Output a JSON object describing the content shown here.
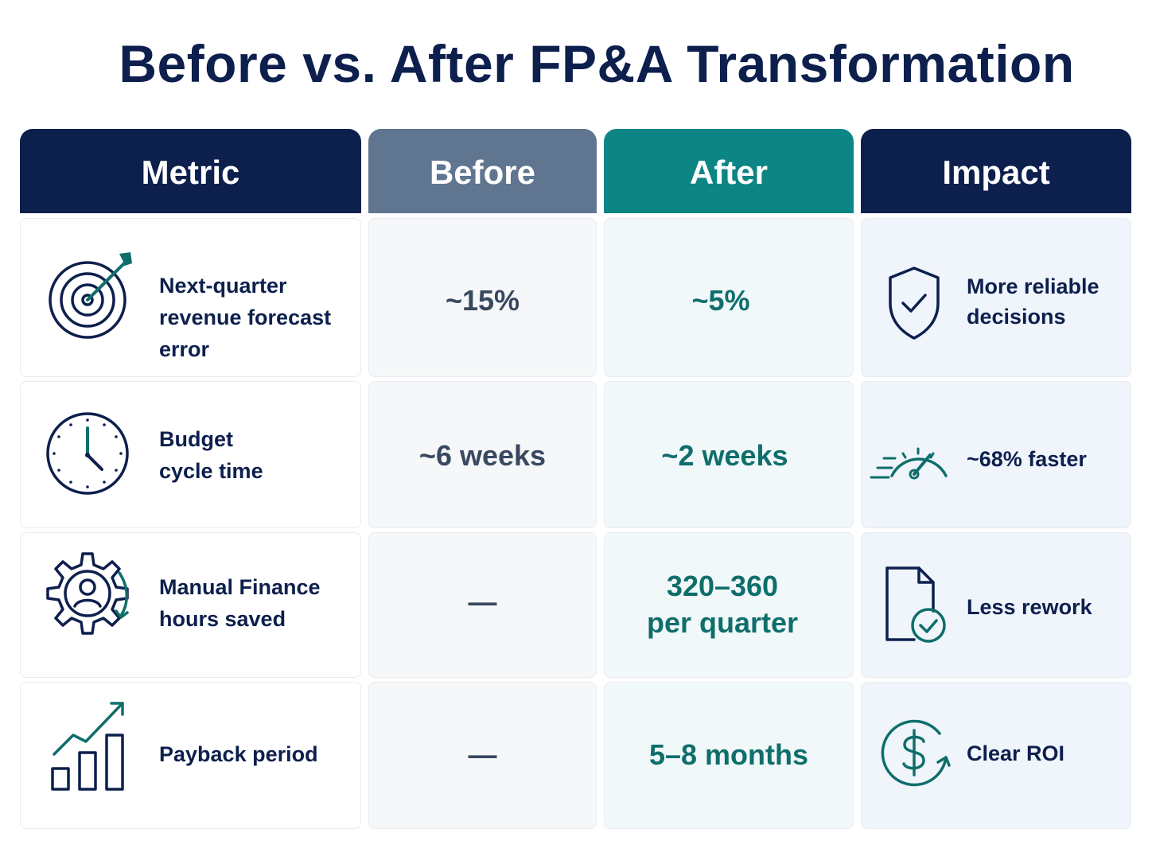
{
  "title": "Before vs. After FP&A Transformation",
  "headers": {
    "metric": "Metric",
    "before": "Before",
    "after": "After",
    "impact": "Impact"
  },
  "rows": [
    {
      "metric_icon": "target-arrow-icon",
      "metric_lines": [
        "Next-quarter",
        "revenue forecast error"
      ],
      "before_lines": [
        "~15%"
      ],
      "after_lines": [
        "~5%"
      ],
      "impact_icon": "shield-check-icon",
      "impact_lines": [
        "More reliable",
        "decisions"
      ]
    },
    {
      "metric_icon": "clock-icon",
      "metric_lines": [
        "Budget",
        "cycle time"
      ],
      "before_lines": [
        "~6 weeks"
      ],
      "after_lines": [
        "~2 weeks"
      ],
      "impact_icon": "speedometer-icon",
      "impact_lines": [
        "~68% faster"
      ]
    },
    {
      "metric_icon": "gear-person-icon",
      "metric_lines": [
        "Manual Finance",
        "hours saved"
      ],
      "before_lines": [
        "—"
      ],
      "after_lines": [
        "320–360",
        "per quarter"
      ],
      "impact_icon": "document-check-icon",
      "impact_lines": [
        "Less rework"
      ]
    },
    {
      "metric_icon": "growth-chart-icon",
      "metric_lines": [
        "Payback period"
      ],
      "before_lines": [
        "—"
      ],
      "after_lines": [
        "5–8 months"
      ],
      "impact_icon": "dollar-cycle-icon",
      "impact_lines": [
        "Clear ROI"
      ]
    }
  ],
  "colors": {
    "navy": "#0d1f4d",
    "header_metric": "#0d1f4d",
    "header_before": "#5f7590",
    "header_after": "#0d8585",
    "header_impact": "#0d1f4d",
    "teal": "#0f6e6b"
  }
}
